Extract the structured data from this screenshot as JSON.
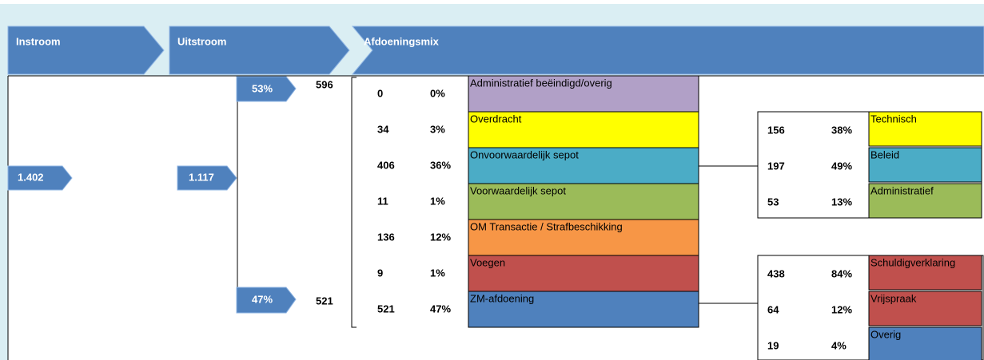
{
  "header": {
    "steps": [
      "Instroom",
      "Uitstroom",
      "Afdoeningsmix"
    ]
  },
  "flow": {
    "instroom": "1.402",
    "uitstroom": "1.117",
    "branches": [
      {
        "pct": "53%",
        "count": "596"
      },
      {
        "pct": "47%",
        "count": "521"
      }
    ]
  },
  "mix": [
    {
      "count": "0",
      "pct": "0%",
      "label": "Administratief beëindigd/overig"
    },
    {
      "count": "34",
      "pct": "3%",
      "label": "Overdracht"
    },
    {
      "count": "406",
      "pct": "36%",
      "label": "Onvoorwaardelijk sepot"
    },
    {
      "count": "11",
      "pct": "1%",
      "label": "Voorwaardelijk sepot"
    },
    {
      "count": "136",
      "pct": "12%",
      "label": "OM Transactie / Strafbeschikking"
    },
    {
      "count": "9",
      "pct": "1%",
      "label": "Voegen"
    },
    {
      "count": "521",
      "pct": "47%",
      "label": "ZM-afdoening"
    }
  ],
  "sepot": [
    {
      "count": "156",
      "pct": "38%",
      "label": "Technisch"
    },
    {
      "count": "197",
      "pct": "49%",
      "label": "Beleid"
    },
    {
      "count": "53",
      "pct": "13%",
      "label": "Administratief"
    }
  ],
  "zm": [
    {
      "count": "438",
      "pct": "84%",
      "label": "Schuldigverklaring"
    },
    {
      "count": "64",
      "pct": "12%",
      "label": "Vrijspraak"
    },
    {
      "count": "19",
      "pct": "4%",
      "label": "Overig"
    }
  ]
}
